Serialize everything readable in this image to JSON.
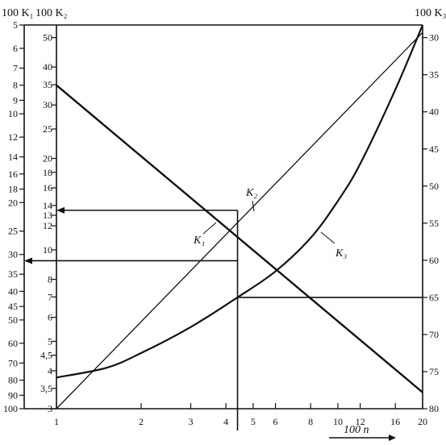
{
  "chart_data": {
    "type": "line",
    "title": "",
    "axis_labels": {
      "left_outer": "100 K₁",
      "left_inner": "100 K₂",
      "right": "100 K₃",
      "bottom": "100 n"
    },
    "k1_scale": {
      "range": [
        5,
        100
      ],
      "ticks": [
        "5",
        "6",
        "7",
        "8",
        "9",
        "10",
        "12",
        "14",
        "16",
        "18",
        "20",
        "25",
        "30",
        "35",
        "40",
        "45",
        "50",
        "60",
        "70",
        "80",
        "90",
        "100"
      ]
    },
    "k2_scale": {
      "range": [
        3,
        55
      ],
      "ticks": [
        "50",
        "40",
        "35",
        "30",
        "25",
        "20",
        "18",
        "16",
        "14",
        "13",
        "12",
        "10",
        "8",
        "7",
        "6",
        "5",
        "4,5",
        "4",
        "3,5",
        "3"
      ]
    },
    "k3_scale": {
      "range": [
        30,
        80
      ],
      "ticks": [
        "30",
        "35",
        "40",
        "45",
        "50",
        "55",
        "60",
        "65",
        "70",
        "75",
        "80"
      ]
    },
    "n_scale": {
      "range": [
        1,
        20
      ],
      "log": true,
      "ticks": [
        "1",
        "2",
        "3",
        "4",
        "5",
        "6",
        "8",
        "10",
        "12",
        "16",
        "20"
      ]
    },
    "grid": false,
    "series": [
      {
        "name": "K₁",
        "label_position": "center-left",
        "points": [
          [
            1,
            8
          ],
          [
            20,
            88
          ]
        ]
      },
      {
        "name": "K₂",
        "label_position": "center",
        "points": [
          [
            1,
            3
          ],
          [
            20,
            52
          ]
        ]
      },
      {
        "name": "K₃",
        "label_position": "right",
        "points": [
          [
            1,
            75.8
          ],
          [
            1.5,
            74.5
          ],
          [
            2,
            72.5
          ],
          [
            3,
            69
          ],
          [
            4.4,
            65
          ],
          [
            6,
            61.5
          ],
          [
            8,
            57
          ],
          [
            10,
            52
          ],
          [
            12,
            47
          ],
          [
            16,
            37
          ],
          [
            20,
            28.3
          ]
        ]
      }
    ],
    "example": {
      "n": 4.4,
      "K2": 13.5,
      "K1": 31.5,
      "K3": 65
    }
  }
}
